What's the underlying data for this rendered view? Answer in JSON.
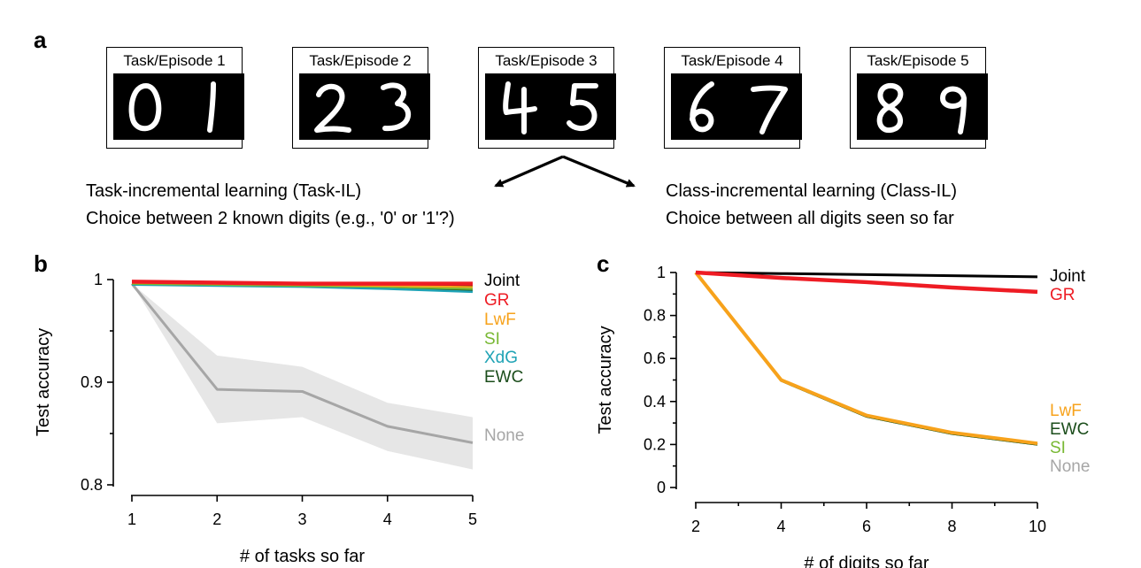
{
  "panel_letters": {
    "a": "a",
    "b": "b",
    "c": "c"
  },
  "episodes": [
    {
      "title": "Task/Episode 1",
      "digits": [
        "0",
        "1"
      ]
    },
    {
      "title": "Task/Episode 2",
      "digits": [
        "2",
        "3"
      ]
    },
    {
      "title": "Task/Episode 3",
      "digits": [
        "4",
        "5"
      ]
    },
    {
      "title": "Task/Episode 4",
      "digits": [
        "6",
        "7"
      ]
    },
    {
      "title": "Task/Episode 5",
      "digits": [
        "8",
        "9"
      ]
    }
  ],
  "task_il": {
    "line1": "Task-incremental learning (Task-IL)",
    "line2": "Choice between 2 known digits (e.g., '0' or '1'?)"
  },
  "class_il": {
    "line1": "Class-incremental learning (Class-IL)",
    "line2": "Choice between all digits seen so far"
  },
  "chart_data": [
    {
      "type": "line",
      "panel": "b",
      "xlabel": "# of tasks so far",
      "ylabel": "Test accuracy",
      "x": [
        1,
        2,
        3,
        4,
        5
      ],
      "xticks": [
        "1",
        "2",
        "3",
        "4",
        "5"
      ],
      "yticks": [
        "0.8",
        "0.9",
        "1"
      ],
      "ytick_values": [
        0.8,
        0.9,
        1.0
      ],
      "xlim": [
        1,
        5
      ],
      "ylim": [
        0.8,
        1.0
      ],
      "series": [
        {
          "name": "Joint",
          "color": "#000000",
          "values": [
            0.998,
            0.997,
            0.996,
            0.996,
            0.995
          ]
        },
        {
          "name": "GR",
          "color": "#ee1c24",
          "values": [
            0.998,
            0.997,
            0.996,
            0.996,
            0.996
          ]
        },
        {
          "name": "LwF",
          "color": "#f7a21b",
          "values": [
            0.997,
            0.996,
            0.995,
            0.994,
            0.993
          ]
        },
        {
          "name": "SI",
          "color": "#78b833",
          "values": [
            0.996,
            0.995,
            0.994,
            0.993,
            0.991
          ]
        },
        {
          "name": "XdG",
          "color": "#1fa3b5",
          "values": [
            0.995,
            0.994,
            0.993,
            0.991,
            0.988
          ]
        },
        {
          "name": "EWC",
          "color": "#1b4d1b",
          "values": [
            0.996,
            0.995,
            0.994,
            0.992,
            0.99
          ]
        },
        {
          "name": "None",
          "color": "#a6a6a6",
          "values": [
            0.996,
            0.893,
            0.891,
            0.857,
            0.841
          ],
          "band_low": [
            0.996,
            0.86,
            0.866,
            0.833,
            0.815
          ],
          "band_high": [
            0.996,
            0.926,
            0.915,
            0.88,
            0.866
          ]
        }
      ]
    },
    {
      "type": "line",
      "panel": "c",
      "xlabel": "# of digits so far",
      "ylabel": "Test accuracy",
      "x": [
        2,
        4,
        6,
        8,
        10
      ],
      "xticks": [
        "2",
        "4",
        "6",
        "8",
        "10"
      ],
      "yticks": [
        "0",
        "0.2",
        "0.4",
        "0.6",
        "0.8",
        "1"
      ],
      "ytick_values": [
        0,
        0.2,
        0.4,
        0.6,
        0.8,
        1.0
      ],
      "xlim": [
        2,
        10
      ],
      "ylim": [
        0,
        1.0
      ],
      "series": [
        {
          "name": "Joint",
          "color": "#000000",
          "values": [
            1.0,
            0.995,
            0.99,
            0.985,
            0.98
          ]
        },
        {
          "name": "GR",
          "color": "#ee1c24",
          "values": [
            1.0,
            0.975,
            0.955,
            0.93,
            0.91
          ]
        },
        {
          "name": "LwF",
          "color": "#f7a21b",
          "values": [
            1.0,
            0.5,
            0.335,
            0.255,
            0.205
          ]
        },
        {
          "name": "EWC",
          "color": "#1b4d1b",
          "values": [
            1.0,
            0.497,
            0.33,
            0.25,
            0.2
          ]
        },
        {
          "name": "SI",
          "color": "#78b833",
          "values": [
            1.0,
            0.497,
            0.33,
            0.25,
            0.2
          ]
        },
        {
          "name": "None",
          "color": "#a6a6a6",
          "values": [
            1.0,
            0.497,
            0.33,
            0.25,
            0.2
          ]
        }
      ]
    }
  ]
}
